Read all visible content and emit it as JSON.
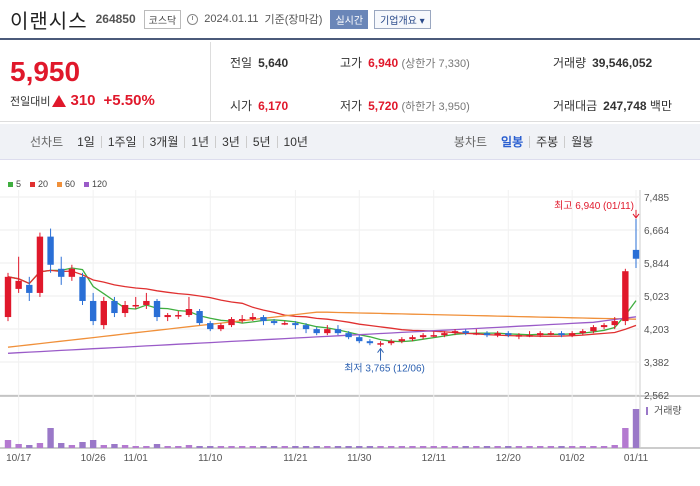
{
  "header": {
    "name": "이랜시스",
    "code": "264850",
    "market": "코스닥",
    "date": "2024.01.11",
    "basis": "기준(장마감)",
    "realtime_label": "실시간",
    "company_label": "기업개요"
  },
  "price": {
    "current": "5,950",
    "change_label": "전일대비",
    "change": "310",
    "change_pct": "+5.50%"
  },
  "stats": {
    "prev_label": "전일",
    "prev": "5,640",
    "high_label": "고가",
    "high": "6,940",
    "upper_limit": "(상한가 7,330)",
    "volume_label": "거래량",
    "volume": "39,546,052",
    "open_label": "시가",
    "open": "6,170",
    "low_label": "저가",
    "low": "5,720",
    "lower_limit": "(하한가 3,950)",
    "amount_label": "거래대금",
    "amount": "247,748",
    "amount_unit": "백만"
  },
  "tabs": {
    "line_label": "선차트",
    "line_items": [
      "1일",
      "1주일",
      "3개월",
      "1년",
      "3년",
      "5년",
      "10년"
    ],
    "candle_label": "봉차트",
    "candle_items": [
      "일봉",
      "주봉",
      "월봉"
    ],
    "active_candle": "일봉"
  },
  "colors": {
    "up": "#e0182b",
    "down": "#2a6fd6",
    "ma5": "#3fae3f",
    "ma20": "#e03030",
    "ma60": "#f0903a",
    "ma120": "#9a5bc8"
  },
  "chart_data": {
    "type": "candlestick",
    "legend": [
      {
        "name": "5",
        "color": "#3fae3f"
      },
      {
        "name": "20",
        "color": "#e03030"
      },
      {
        "name": "60",
        "color": "#f0903a"
      },
      {
        "name": "120",
        "color": "#9a5bc8"
      }
    ],
    "y_ticks": [
      7485,
      6664,
      5844,
      5023,
      4203,
      3382,
      2562
    ],
    "y_tick_labels": [
      "7,485",
      "6,664",
      "5,844",
      "5,023",
      "4,203",
      "3,382",
      "2,562"
    ],
    "ylim": [
      2562,
      7485
    ],
    "x_labels": [
      {
        "label": "10/17",
        "i": 1
      },
      {
        "label": "10/26",
        "i": 8
      },
      {
        "label": "11/01",
        "i": 12
      },
      {
        "label": "11/10",
        "i": 19
      },
      {
        "label": "11/21",
        "i": 27
      },
      {
        "label": "11/30",
        "i": 33
      },
      {
        "label": "12/11",
        "i": 40
      },
      {
        "label": "12/20",
        "i": 47
      },
      {
        "label": "01/02",
        "i": 53
      },
      {
        "label": "01/11",
        "i": 59
      }
    ],
    "high_note": "최고 6,940 (01/11)",
    "low_note": "최저 3,765 (12/06)",
    "volume_label": "거래량",
    "candles": [
      [
        4500,
        5500,
        5600,
        4400
      ],
      [
        5200,
        5400,
        6000,
        5100
      ],
      [
        5300,
        5100,
        5500,
        4900
      ],
      [
        5100,
        6500,
        6600,
        5000
      ],
      [
        6500,
        5800,
        6700,
        5600
      ],
      [
        5700,
        5500,
        6000,
        5300
      ],
      [
        5500,
        5700,
        5800,
        5400
      ],
      [
        5500,
        4900,
        5600,
        4800
      ],
      [
        4900,
        4400,
        5100,
        4300
      ],
      [
        4300,
        4900,
        5000,
        4200
      ],
      [
        4900,
        4600,
        5000,
        4500
      ],
      [
        4600,
        4800,
        4900,
        4500
      ],
      [
        4800,
        4800,
        5000,
        4700
      ],
      [
        4800,
        4900,
        5100,
        4700
      ],
      [
        4900,
        4500,
        4950,
        4400
      ],
      [
        4500,
        4550,
        4600,
        4400
      ],
      [
        4550,
        4550,
        4650,
        4450
      ],
      [
        4550,
        4700,
        5000,
        4500
      ],
      [
        4650,
        4350,
        4700,
        4300
      ],
      [
        4350,
        4200,
        4400,
        4150
      ],
      [
        4200,
        4300,
        4350,
        4150
      ],
      [
        4300,
        4450,
        4500,
        4250
      ],
      [
        4450,
        4450,
        4550,
        4350
      ],
      [
        4450,
        4500,
        4600,
        4400
      ],
      [
        4500,
        4400,
        4550,
        4300
      ],
      [
        4400,
        4350,
        4450,
        4300
      ],
      [
        4350,
        4350,
        4400,
        4300
      ],
      [
        4350,
        4300,
        4400,
        4200
      ],
      [
        4300,
        4200,
        4350,
        4100
      ],
      [
        4200,
        4100,
        4250,
        4050
      ],
      [
        4100,
        4200,
        4300,
        4050
      ],
      [
        4200,
        4100,
        4300,
        4050
      ],
      [
        4100,
        4000,
        4150,
        3950
      ],
      [
        4000,
        3900,
        4050,
        3850
      ],
      [
        3900,
        3850,
        3950,
        3800
      ],
      [
        3850,
        3850,
        3900,
        3765
      ],
      [
        3850,
        3900,
        3950,
        3800
      ],
      [
        3900,
        3950,
        4000,
        3850
      ],
      [
        3950,
        4000,
        4050,
        3900
      ],
      [
        4000,
        4050,
        4100,
        3950
      ],
      [
        4050,
        4050,
        4150,
        4000
      ],
      [
        4050,
        4100,
        4150,
        4000
      ],
      [
        4100,
        4150,
        4200,
        4050
      ],
      [
        4150,
        4100,
        4200,
        4050
      ],
      [
        4100,
        4100,
        4200,
        4050
      ],
      [
        4100,
        4050,
        4150,
        4000
      ],
      [
        4050,
        4100,
        4150,
        4000
      ],
      [
        4100,
        4050,
        4150,
        4000
      ],
      [
        4050,
        4050,
        4100,
        3950
      ],
      [
        4050,
        4050,
        4150,
        4000
      ],
      [
        4050,
        4100,
        4150,
        4000
      ],
      [
        4100,
        4100,
        4150,
        4050
      ],
      [
        4100,
        4050,
        4150,
        4000
      ],
      [
        4050,
        4100,
        4150,
        4000
      ],
      [
        4100,
        4150,
        4200,
        4050
      ],
      [
        4150,
        4250,
        4300,
        4100
      ],
      [
        4250,
        4300,
        4350,
        4200
      ],
      [
        4300,
        4400,
        4500,
        4200
      ],
      [
        4400,
        5640,
        5700,
        4300
      ],
      [
        6170,
        5950,
        6940,
        5720
      ]
    ],
    "volumes": [
      8,
      4,
      3,
      5,
      20,
      5,
      3,
      6,
      8,
      3,
      4,
      3,
      2,
      2,
      4,
      2,
      2,
      3,
      2,
      2,
      2,
      2,
      2,
      2,
      2,
      2,
      2,
      2,
      2,
      2,
      2,
      2,
      2,
      2,
      2,
      2,
      2,
      2,
      2,
      2,
      2,
      2,
      2,
      2,
      2,
      2,
      2,
      2,
      2,
      2,
      2,
      2,
      2,
      2,
      2,
      2,
      2,
      3,
      20,
      39
    ]
  }
}
